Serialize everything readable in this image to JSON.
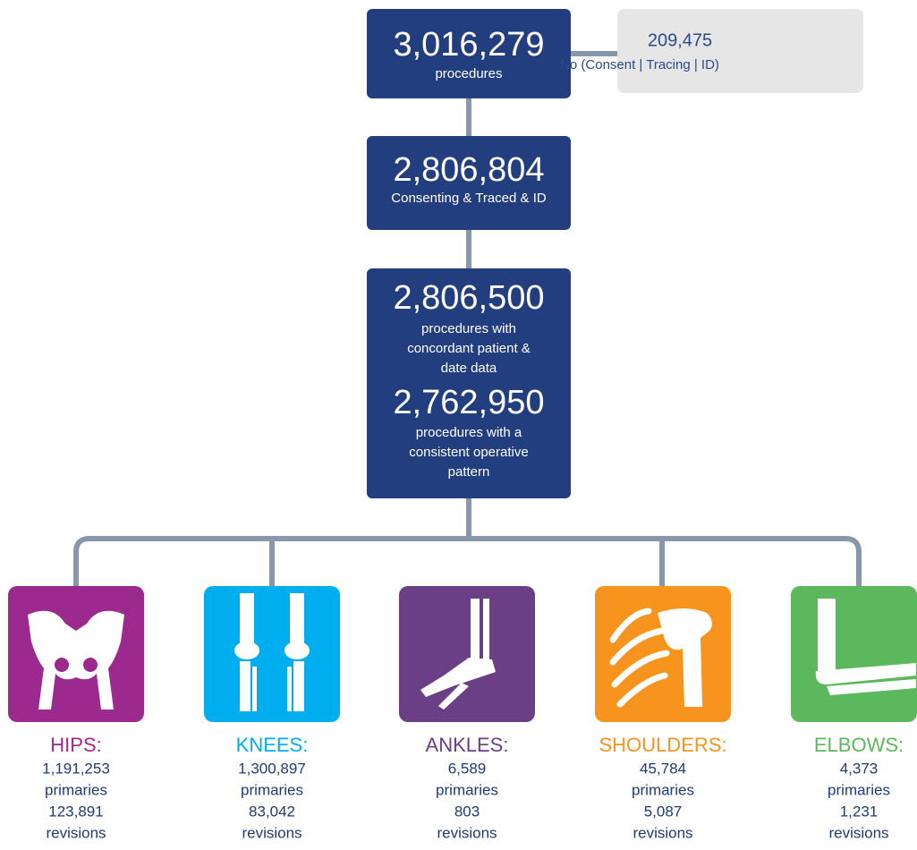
{
  "top": {
    "count": "3,016,279",
    "label": "procedures"
  },
  "excluded": {
    "count": "209,475",
    "label": "No (Consent | Tracing | ID)"
  },
  "consented": {
    "count": "2,806,804",
    "label": "Consenting & Traced & ID"
  },
  "concordant": {
    "count": "2,806,500",
    "lines": [
      "procedures with",
      "concordant patient &",
      "date data"
    ]
  },
  "consistent": {
    "count": "2,762,950",
    "lines": [
      "procedures with a",
      "consistent operative",
      "pattern"
    ]
  },
  "joints": [
    {
      "name": "HIPS:",
      "color": "#9c2a8e",
      "primaries": "1,191,253",
      "primaries_label": "primaries",
      "revisions": "123,891",
      "revisions_label": "revisions"
    },
    {
      "name": "KNEES:",
      "color": "#00aeef",
      "primaries": "1,300,897",
      "primaries_label": "primaries",
      "revisions": "83,042",
      "revisions_label": "revisions"
    },
    {
      "name": "ANKLES:",
      "color": "#6a3f85",
      "primaries": "6,589",
      "primaries_label": "primaries",
      "revisions": "803",
      "revisions_label": "revisions"
    },
    {
      "name": "SHOULDERS:",
      "color": "#f7941d",
      "primaries": "45,784",
      "primaries_label": "primaries",
      "revisions": "5,087",
      "revisions_label": "revisions"
    },
    {
      "name": "ELBOWS:",
      "color": "#5cb85c",
      "primaries": "4,373",
      "primaries_label": "primaries",
      "revisions": "1,231",
      "revisions_label": "revisions"
    }
  ]
}
